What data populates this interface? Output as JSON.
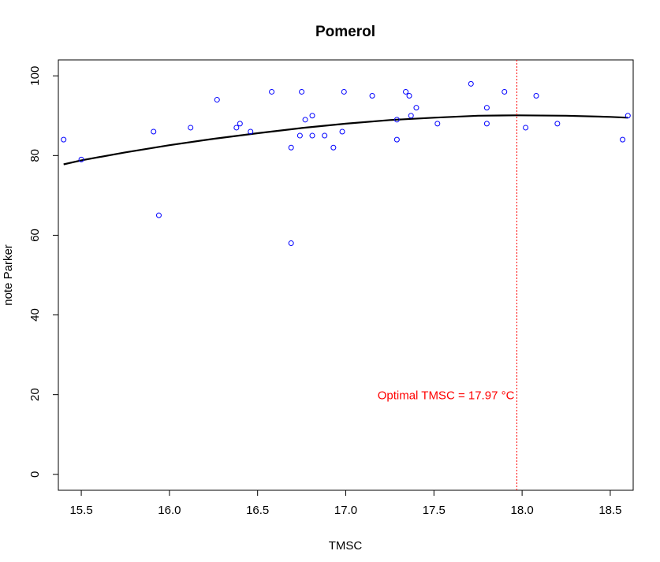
{
  "chart_data": {
    "type": "scatter",
    "title": "Pomerol",
    "xlabel": "TMSC",
    "ylabel": "note Parker",
    "xlim": [
      15.37,
      18.63
    ],
    "ylim": [
      -4,
      104
    ],
    "xticks": [
      15.5,
      16.0,
      16.5,
      17.0,
      17.5,
      18.0,
      18.5
    ],
    "xtick_labels": [
      "15.5",
      "16.0",
      "16.5",
      "17.0",
      "17.5",
      "18.0",
      "18.5"
    ],
    "yticks": [
      0,
      20,
      40,
      60,
      80,
      100
    ],
    "ytick_labels": [
      "0",
      "20",
      "40",
      "60",
      "80",
      "100"
    ],
    "grid": false,
    "legend": "none",
    "point_color": "#0000ff",
    "fit_color": "#000000",
    "vline_color": "#ff0000",
    "points": [
      {
        "x": 15.4,
        "y": 84
      },
      {
        "x": 15.5,
        "y": 79
      },
      {
        "x": 15.91,
        "y": 86
      },
      {
        "x": 15.94,
        "y": 65
      },
      {
        "x": 16.12,
        "y": 87
      },
      {
        "x": 16.27,
        "y": 94
      },
      {
        "x": 16.38,
        "y": 87
      },
      {
        "x": 16.4,
        "y": 88
      },
      {
        "x": 16.46,
        "y": 86
      },
      {
        "x": 16.58,
        "y": 96
      },
      {
        "x": 16.69,
        "y": 58
      },
      {
        "x": 16.69,
        "y": 82
      },
      {
        "x": 16.74,
        "y": 85
      },
      {
        "x": 16.75,
        "y": 96
      },
      {
        "x": 16.77,
        "y": 89
      },
      {
        "x": 16.81,
        "y": 90
      },
      {
        "x": 16.81,
        "y": 85
      },
      {
        "x": 16.88,
        "y": 85
      },
      {
        "x": 16.93,
        "y": 82
      },
      {
        "x": 16.98,
        "y": 86
      },
      {
        "x": 16.99,
        "y": 96
      },
      {
        "x": 17.15,
        "y": 95
      },
      {
        "x": 17.29,
        "y": 89
      },
      {
        "x": 17.29,
        "y": 84
      },
      {
        "x": 17.34,
        "y": 96
      },
      {
        "x": 17.36,
        "y": 95
      },
      {
        "x": 17.37,
        "y": 90
      },
      {
        "x": 17.4,
        "y": 92
      },
      {
        "x": 17.52,
        "y": 88
      },
      {
        "x": 17.71,
        "y": 98
      },
      {
        "x": 17.8,
        "y": 92
      },
      {
        "x": 17.8,
        "y": 88
      },
      {
        "x": 17.9,
        "y": 96
      },
      {
        "x": 18.02,
        "y": 87
      },
      {
        "x": 18.08,
        "y": 95
      },
      {
        "x": 18.2,
        "y": 88
      },
      {
        "x": 18.57,
        "y": 84
      },
      {
        "x": 18.6,
        "y": 90
      }
    ],
    "fit_curve": {
      "x": [
        15.4,
        15.5,
        15.75,
        16.0,
        16.25,
        16.5,
        16.75,
        17.0,
        17.25,
        17.5,
        17.75,
        17.97,
        18.25,
        18.5,
        18.6
      ],
      "y": [
        77.8,
        78.8,
        80.8,
        82.6,
        84.2,
        85.6,
        86.9,
        88.0,
        88.9,
        89.5,
        90.0,
        90.1,
        90.0,
        89.7,
        89.5
      ]
    },
    "optimum_x": 17.97,
    "annotation": "Optimal TMSC =  17.97  °C"
  }
}
